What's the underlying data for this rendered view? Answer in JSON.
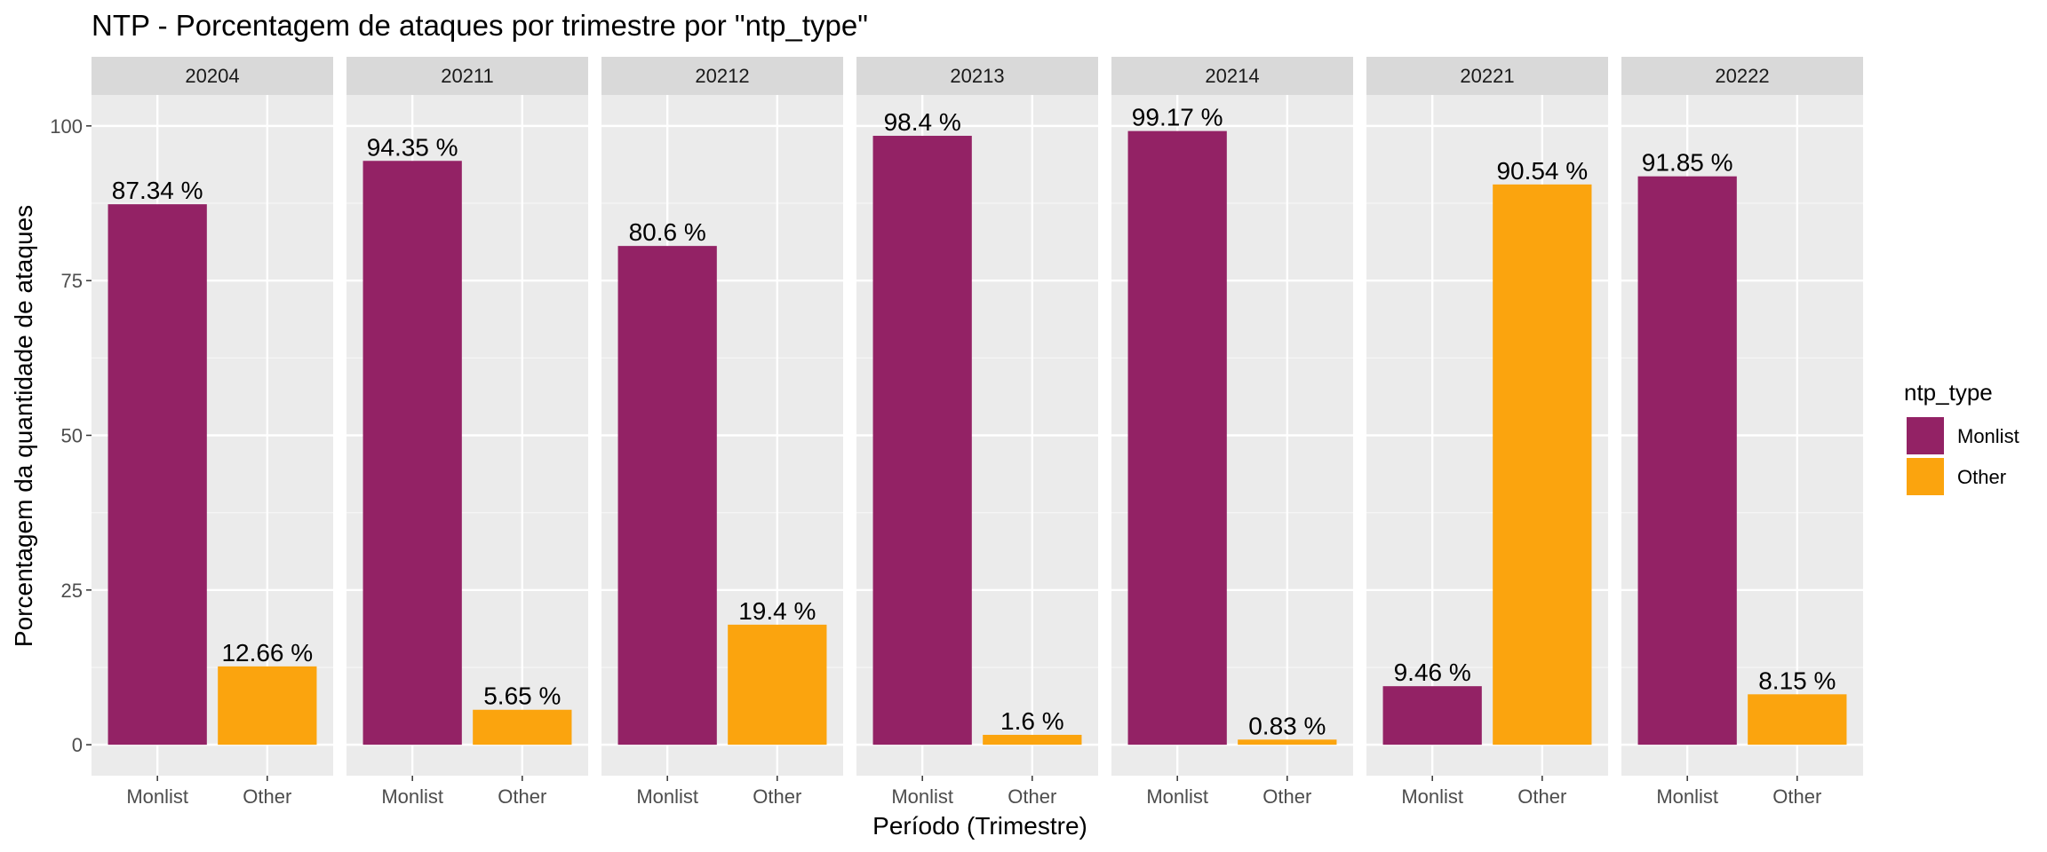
{
  "chart_data": {
    "type": "bar",
    "title": "NTP - Porcentagem de ataques por trimestre por \"ntp_type\"",
    "xlabel": "Período (Trimestre)",
    "ylabel": "Porcentagem da quantidade de ataques",
    "ylim": [
      -5,
      105
    ],
    "yticks": [
      0,
      25,
      50,
      75,
      100
    ],
    "grid": true,
    "categories": [
      "Monlist",
      "Other"
    ],
    "legend": {
      "title": "ntp_type",
      "position": "right",
      "entries": [
        {
          "name": "Monlist",
          "color": "#932265"
        },
        {
          "name": "Other",
          "color": "#FBA40E"
        }
      ]
    },
    "panels": [
      {
        "label": "20204",
        "values": [
          87.34,
          12.66
        ],
        "labels": [
          "87.34 %",
          "12.66 %"
        ]
      },
      {
        "label": "20211",
        "values": [
          94.35,
          5.65
        ],
        "labels": [
          "94.35 %",
          "5.65 %"
        ]
      },
      {
        "label": "20212",
        "values": [
          80.6,
          19.4
        ],
        "labels": [
          "80.6 %",
          "19.4 %"
        ]
      },
      {
        "label": "20213",
        "values": [
          98.4,
          1.6
        ],
        "labels": [
          "98.4 %",
          "1.6 %"
        ]
      },
      {
        "label": "20214",
        "values": [
          99.17,
          0.83
        ],
        "labels": [
          "99.17 %",
          "0.83 %"
        ]
      },
      {
        "label": "20221",
        "values": [
          9.46,
          90.54
        ],
        "labels": [
          "9.46 %",
          "90.54 %"
        ]
      },
      {
        "label": "20222",
        "values": [
          91.85,
          8.15
        ],
        "labels": [
          "91.85 %",
          "8.15 %"
        ]
      }
    ]
  }
}
